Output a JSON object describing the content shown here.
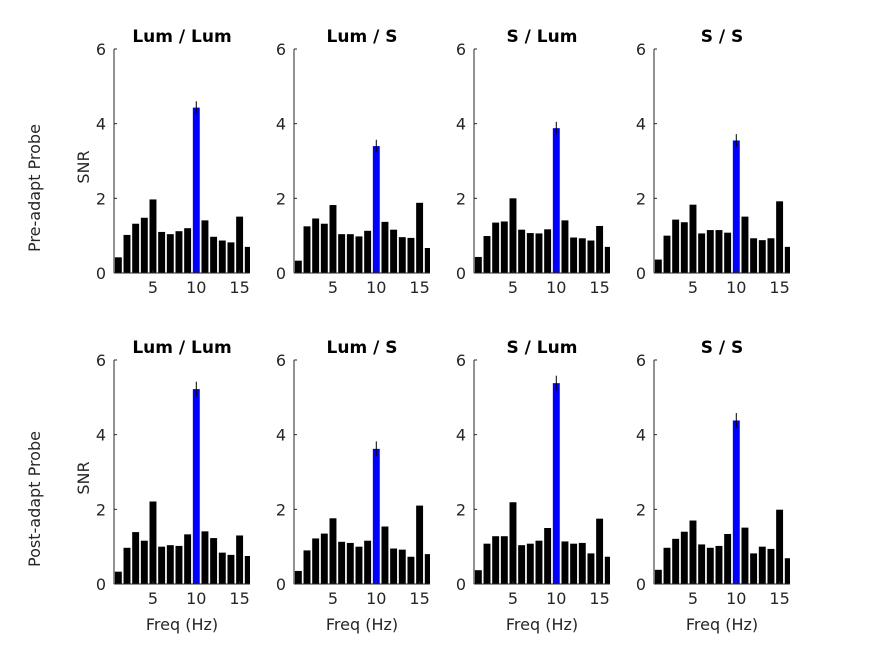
{
  "figure": {
    "row_labels": [
      "Pre-adapt Probe",
      "Post-adapt Probe"
    ],
    "ylabel": "SNR",
    "xlabel": "Freq (Hz)",
    "yticks": [
      "0",
      "2",
      "4",
      "6"
    ],
    "xticks": [
      "5",
      "10",
      "15"
    ],
    "colors": {
      "signal": "#0000ff",
      "noise": "#000000",
      "axis": "#262626"
    }
  },
  "chart_data": [
    {
      "type": "bar",
      "title": "Lum / Lum",
      "row": "Pre-adapt Probe",
      "x": [
        1,
        2,
        3,
        4,
        5,
        6,
        7,
        8,
        9,
        10,
        11,
        12,
        13,
        14,
        15,
        16
      ],
      "values": [
        0.42,
        1.02,
        1.32,
        1.48,
        1.97,
        1.1,
        1.04,
        1.12,
        1.2,
        4.43,
        1.41,
        0.97,
        0.87,
        0.82,
        1.51,
        0.7
      ],
      "highlight_x": 10,
      "highlight_error": 0.17,
      "xlim": [
        0.5,
        16.2
      ],
      "ylim": [
        0,
        6
      ],
      "xlabel": "",
      "ylabel": "SNR"
    },
    {
      "type": "bar",
      "title": "Lum / S",
      "row": "Pre-adapt Probe",
      "x": [
        1,
        2,
        3,
        4,
        5,
        6,
        7,
        8,
        9,
        10,
        11,
        12,
        13,
        14,
        15,
        16
      ],
      "values": [
        0.33,
        1.25,
        1.46,
        1.32,
        1.82,
        1.04,
        1.04,
        0.98,
        1.13,
        3.4,
        1.37,
        1.16,
        0.96,
        0.94,
        1.88,
        0.67
      ],
      "highlight_x": 10,
      "highlight_error": 0.17,
      "xlim": [
        0.5,
        16.2
      ],
      "ylim": [
        0,
        6
      ],
      "xlabel": "",
      "ylabel": ""
    },
    {
      "type": "bar",
      "title": "S / Lum",
      "row": "Pre-adapt Probe",
      "x": [
        1,
        2,
        3,
        4,
        5,
        6,
        7,
        8,
        9,
        10,
        11,
        12,
        13,
        14,
        15,
        16
      ],
      "values": [
        0.43,
        0.99,
        1.35,
        1.38,
        2.0,
        1.16,
        1.07,
        1.06,
        1.17,
        3.88,
        1.41,
        0.95,
        0.93,
        0.87,
        1.26,
        0.7
      ],
      "highlight_x": 10,
      "highlight_error": 0.17,
      "xlim": [
        0.5,
        16.2
      ],
      "ylim": [
        0,
        6
      ],
      "xlabel": "",
      "ylabel": ""
    },
    {
      "type": "bar",
      "title": "S / S",
      "row": "Pre-adapt Probe",
      "x": [
        1,
        2,
        3,
        4,
        5,
        6,
        7,
        8,
        9,
        10,
        11,
        12,
        13,
        14,
        15,
        16
      ],
      "values": [
        0.36,
        1.0,
        1.43,
        1.36,
        1.83,
        1.06,
        1.15,
        1.15,
        1.08,
        3.55,
        1.51,
        0.93,
        0.88,
        0.93,
        1.92,
        0.7
      ],
      "highlight_x": 10,
      "highlight_error": 0.17,
      "xlim": [
        0.5,
        16.2
      ],
      "ylim": [
        0,
        6
      ],
      "xlabel": "",
      "ylabel": ""
    },
    {
      "type": "bar",
      "title": "Lum / Lum",
      "row": "Post-adapt Probe",
      "x": [
        1,
        2,
        3,
        4,
        5,
        6,
        7,
        8,
        9,
        10,
        11,
        12,
        13,
        14,
        15,
        16
      ],
      "values": [
        0.33,
        0.97,
        1.39,
        1.16,
        2.21,
        1.0,
        1.04,
        1.02,
        1.33,
        5.22,
        1.41,
        1.23,
        0.84,
        0.78,
        1.3,
        0.75
      ],
      "highlight_x": 10,
      "highlight_error": 0.2,
      "xlim": [
        0.5,
        16.2
      ],
      "ylim": [
        0,
        6
      ],
      "xlabel": "Freq (Hz)",
      "ylabel": "SNR"
    },
    {
      "type": "bar",
      "title": "Lum / S",
      "row": "Post-adapt Probe",
      "x": [
        1,
        2,
        3,
        4,
        5,
        6,
        7,
        8,
        9,
        10,
        11,
        12,
        13,
        14,
        15,
        16
      ],
      "values": [
        0.35,
        0.9,
        1.22,
        1.35,
        1.76,
        1.13,
        1.1,
        1.0,
        1.16,
        3.62,
        1.54,
        0.95,
        0.92,
        0.73,
        2.1,
        0.8
      ],
      "highlight_x": 10,
      "highlight_error": 0.2,
      "xlim": [
        0.5,
        16.2
      ],
      "ylim": [
        0,
        6
      ],
      "xlabel": "Freq (Hz)",
      "ylabel": ""
    },
    {
      "type": "bar",
      "title": "S / Lum",
      "row": "Post-adapt Probe",
      "x": [
        1,
        2,
        3,
        4,
        5,
        6,
        7,
        8,
        9,
        10,
        11,
        12,
        13,
        14,
        15,
        16
      ],
      "values": [
        0.37,
        1.08,
        1.28,
        1.28,
        2.19,
        1.04,
        1.08,
        1.16,
        1.5,
        5.38,
        1.14,
        1.08,
        1.1,
        0.82,
        1.75,
        0.73
      ],
      "highlight_x": 10,
      "highlight_error": 0.2,
      "xlim": [
        0.5,
        16.2
      ],
      "ylim": [
        0,
        6
      ],
      "xlabel": "Freq (Hz)",
      "ylabel": ""
    },
    {
      "type": "bar",
      "title": "S / S",
      "row": "Post-adapt Probe",
      "x": [
        1,
        2,
        3,
        4,
        5,
        6,
        7,
        8,
        9,
        10,
        11,
        12,
        13,
        14,
        15,
        16
      ],
      "values": [
        0.38,
        0.97,
        1.21,
        1.4,
        1.7,
        1.06,
        0.97,
        1.02,
        1.34,
        4.38,
        1.51,
        0.82,
        1.0,
        0.94,
        1.99,
        0.69
      ],
      "highlight_x": 10,
      "highlight_error": 0.2,
      "xlim": [
        0.5,
        16.2
      ],
      "ylim": [
        0,
        6
      ],
      "xlabel": "Freq (Hz)",
      "ylabel": ""
    }
  ]
}
